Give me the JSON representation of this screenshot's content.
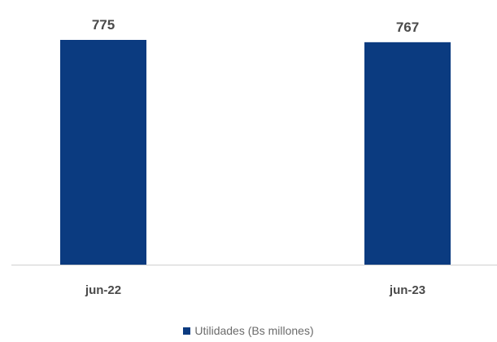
{
  "chart_data": {
    "type": "bar",
    "categories": [
      "jun-22",
      "jun-23"
    ],
    "series": [
      {
        "name": "Utilidades (Bs millones)",
        "values": [
          775,
          767
        ],
        "color": "#0b3b80"
      }
    ],
    "data_labels": [
      "775",
      "767"
    ],
    "ylim": [
      0,
      800
    ],
    "grid": false,
    "legend_position": "bottom-center",
    "baseline_color": "#d0d0d0"
  }
}
